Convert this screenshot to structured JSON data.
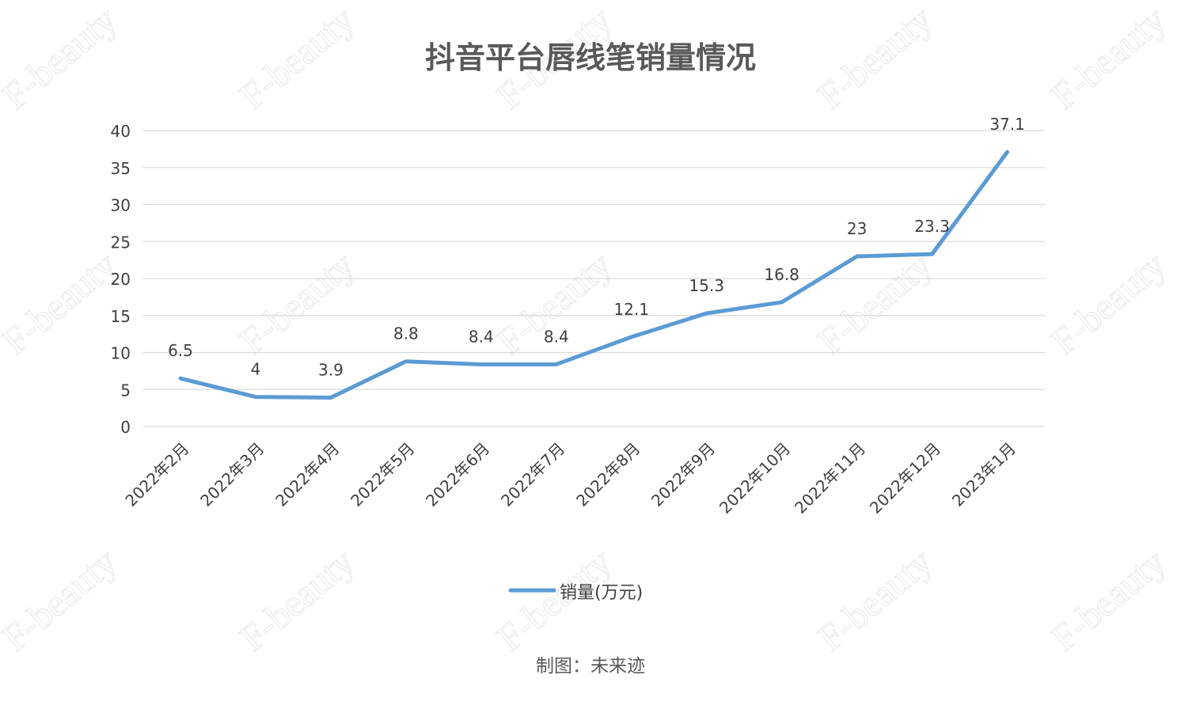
{
  "watermark": "F-beauty",
  "footer": "制图：未来迹",
  "chart_data": {
    "type": "line",
    "title": "抖音平台唇线笔销量情况",
    "categories": [
      "2022年2月",
      "2022年3月",
      "2022年4月",
      "2022年5月",
      "2022年6月",
      "2022年7月",
      "2022年8月",
      "2022年9月",
      "2022年10月",
      "2022年11月",
      "2022年12月",
      "2023年1月"
    ],
    "series": [
      {
        "name": "销量(万元)",
        "values": [
          6.5,
          4,
          3.9,
          8.8,
          8.4,
          8.4,
          12.1,
          15.3,
          16.8,
          23,
          23.3,
          37.1
        ],
        "color": "#5B9BD5"
      }
    ],
    "yticks": [
      "0",
      "5",
      "10",
      "15",
      "20",
      "25",
      "30",
      "35",
      "40"
    ],
    "ylim": [
      0,
      40
    ],
    "grid": true,
    "data_labels": true,
    "legend": "bottom"
  }
}
